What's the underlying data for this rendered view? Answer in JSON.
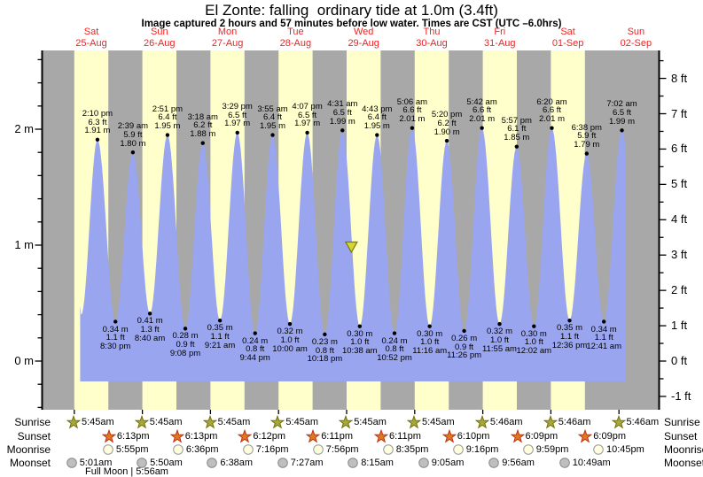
{
  "title": "El Zonte: falling  ordinary tide at 1.0m (3.4ft)",
  "subtitle": "Image captured 2 hours and 57 minutes before low water. Times are CST (UTC –6.0hrs)",
  "chart_data": {
    "type": "area",
    "title": "El Zonte: falling  ordinary tide at 1.0m (3.4ft)",
    "subtitle": "Image captured 2 hours and 57 minutes before low water. Times are CST (UTC –6.0hrs)",
    "ylabel_left_unit": "m",
    "ylabel_right_unit": "ft",
    "days": [
      {
        "dow": "Sat",
        "date": "25-Aug"
      },
      {
        "dow": "Sun",
        "date": "26-Aug"
      },
      {
        "dow": "Mon",
        "date": "27-Aug"
      },
      {
        "dow": "Tue",
        "date": "28-Aug"
      },
      {
        "dow": "Wed",
        "date": "29-Aug"
      },
      {
        "dow": "Thu",
        "date": "30-Aug"
      },
      {
        "dow": "Fri",
        "date": "31-Aug"
      },
      {
        "dow": "Sat",
        "date": "01-Sep"
      },
      {
        "dow": "Sun",
        "date": "02-Sep"
      }
    ],
    "y_axis_left": {
      "ticks": [
        {
          "label": "2 m",
          "value": 2
        },
        {
          "label": "1 m",
          "value": 1
        },
        {
          "label": "0 m",
          "value": 0
        }
      ]
    },
    "y_axis_right": {
      "ticks": [
        {
          "label": "8 ft",
          "value": 8
        },
        {
          "label": "7 ft",
          "value": 7
        },
        {
          "label": "6 ft",
          "value": 6
        },
        {
          "label": "5 ft",
          "value": 5
        },
        {
          "label": "4 ft",
          "value": 4
        },
        {
          "label": "3 ft",
          "value": 3
        },
        {
          "label": "2 ft",
          "value": 2
        },
        {
          "label": "1 ft",
          "value": 1
        },
        {
          "label": "0 ft",
          "value": 0
        },
        {
          "label": "-1 ft",
          "value": -1
        }
      ]
    },
    "tide_events": [
      {
        "type": "high",
        "day": 0,
        "time": "2:10 pm",
        "height_ft": 6.3,
        "height_m": 1.91
      },
      {
        "type": "low",
        "day": 0,
        "time": "8:30 pm",
        "height_ft": 1.1,
        "height_m": 0.34
      },
      {
        "type": "high",
        "day": 1,
        "time": "2:39 am",
        "height_ft": 5.9,
        "height_m": 1.8
      },
      {
        "type": "low",
        "day": 1,
        "time": "8:40 am",
        "height_ft": 1.3,
        "height_m": 0.41
      },
      {
        "type": "high",
        "day": 1,
        "time": "2:51 pm",
        "height_ft": 6.4,
        "height_m": 1.95
      },
      {
        "type": "low",
        "day": 1,
        "time": "9:08 pm",
        "height_ft": 0.9,
        "height_m": 0.28
      },
      {
        "type": "high",
        "day": 2,
        "time": "3:18 am",
        "height_ft": 6.2,
        "height_m": 1.88
      },
      {
        "type": "low",
        "day": 2,
        "time": "9:21 am",
        "height_ft": 1.1,
        "height_m": 0.35
      },
      {
        "type": "high",
        "day": 2,
        "time": "3:29 pm",
        "height_ft": 6.5,
        "height_m": 1.97
      },
      {
        "type": "low",
        "day": 2,
        "time": "9:44 pm",
        "height_ft": 0.8,
        "height_m": 0.24
      },
      {
        "type": "high",
        "day": 3,
        "time": "3:55 am",
        "height_ft": 6.4,
        "height_m": 1.95
      },
      {
        "type": "low",
        "day": 3,
        "time": "10:00 am",
        "height_ft": 1.0,
        "height_m": 0.32
      },
      {
        "type": "high",
        "day": 3,
        "time": "4:07 pm",
        "height_ft": 6.5,
        "height_m": 1.97
      },
      {
        "type": "low",
        "day": 3,
        "time": "10:18 pm",
        "height_ft": 0.8,
        "height_m": 0.23
      },
      {
        "type": "high",
        "day": 4,
        "time": "4:31 am",
        "height_ft": 6.5,
        "height_m": 1.99
      },
      {
        "type": "low",
        "day": 4,
        "time": "10:38 am",
        "height_ft": 1.0,
        "height_m": 0.3
      },
      {
        "type": "high",
        "day": 4,
        "time": "4:43 pm",
        "height_ft": 6.4,
        "height_m": 1.95
      },
      {
        "type": "low",
        "day": 4,
        "time": "10:52 pm",
        "height_ft": 0.8,
        "height_m": 0.24
      },
      {
        "type": "high",
        "day": 5,
        "time": "5:06 am",
        "height_ft": 6.6,
        "height_m": 2.01
      },
      {
        "type": "low",
        "day": 5,
        "time": "11:16 am",
        "height_ft": 1.0,
        "height_m": 0.3
      },
      {
        "type": "high",
        "day": 5,
        "time": "5:20 pm",
        "height_ft": 6.2,
        "height_m": 1.9
      },
      {
        "type": "low",
        "day": 5,
        "time": "11:26 pm",
        "height_ft": 0.9,
        "height_m": 0.26
      },
      {
        "type": "high",
        "day": 6,
        "time": "5:42 am",
        "height_ft": 6.6,
        "height_m": 2.01
      },
      {
        "type": "low",
        "day": 6,
        "time": "11:55 am",
        "height_ft": 1.0,
        "height_m": 0.32
      },
      {
        "type": "high",
        "day": 6,
        "time": "5:57 pm",
        "height_ft": 6.1,
        "height_m": 1.85
      },
      {
        "type": "low",
        "day": 7,
        "time": "12:02 am",
        "height_ft": 1.0,
        "height_m": 0.3
      },
      {
        "type": "high",
        "day": 7,
        "time": "6:20 am",
        "height_ft": 6.6,
        "height_m": 2.01
      },
      {
        "type": "low",
        "day": 7,
        "time": "12:36 pm",
        "height_ft": 1.1,
        "height_m": 0.35
      },
      {
        "type": "high",
        "day": 7,
        "time": "6:38 pm",
        "height_ft": 5.9,
        "height_m": 1.79
      },
      {
        "type": "low",
        "day": 8,
        "time": "12:41 am",
        "height_ft": 1.1,
        "height_m": 0.34
      },
      {
        "type": "high",
        "day": 8,
        "time": "7:02 am",
        "height_ft": 6.5,
        "height_m": 1.99
      }
    ],
    "current_marker": {
      "day": 4,
      "time": "7:41 am",
      "height_m": 1.0
    },
    "colors": {
      "tide_fill": "#9aa5f0",
      "daylight_stripe": "#ffffcc",
      "night_stripe": "#a8a8a8",
      "day_label": "#f22222",
      "marker_fill": "#d6d632",
      "marker_border": "#77770a"
    }
  },
  "astro": {
    "sunrise": {
      "label": "Sunrise",
      "times": [
        "5:45am",
        "5:45am",
        "5:45am",
        "5:45am",
        "5:45am",
        "5:45am",
        "5:46am",
        "5:46am",
        "5:46am"
      ]
    },
    "sunset": {
      "label": "Sunset",
      "times": [
        "6:13pm",
        "6:13pm",
        "6:12pm",
        "6:11pm",
        "6:11pm",
        "6:10pm",
        "6:09pm",
        "6:09pm"
      ]
    },
    "moonrise": {
      "label": "Moonrise",
      "times": [
        "5:55pm",
        "6:36pm",
        "7:16pm",
        "7:56pm",
        "8:35pm",
        "9:16pm",
        "9:59pm",
        "10:45pm"
      ]
    },
    "moonset": {
      "label": "Moonset",
      "times": [
        "5:01am",
        "5:50am",
        "6:38am",
        "7:27am",
        "8:15am",
        "9:05am",
        "9:56am",
        "10:49am"
      ]
    },
    "full_moon": {
      "label": "Full Moon",
      "time": "5:56am"
    }
  }
}
